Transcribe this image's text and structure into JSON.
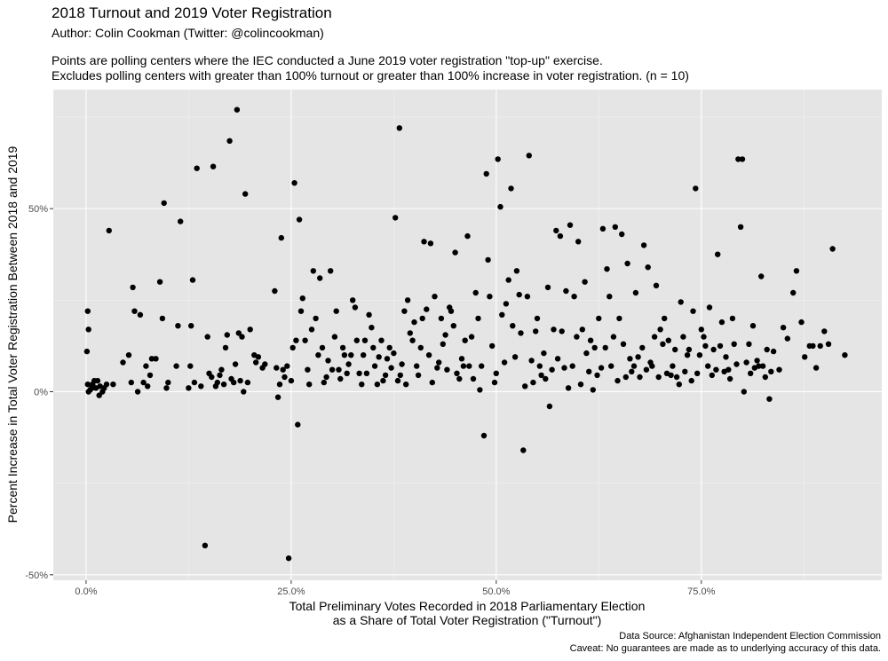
{
  "header": {
    "title": "2018 Turnout and 2019 Voter Registration",
    "subtitle": "Author: Colin Cookman (Twitter: @colincookman)",
    "description_line1": "Points are polling centers where the IEC conducted a June 2019 voter registration \"top-up\" exercise.",
    "description_line2": "Excludes polling centers with greater than 100% turnout or greater than 100% increase in voter registration. (n = 10)"
  },
  "caption": {
    "line1": "Data Source: Afghanistan Independent Election Commission",
    "line2": "Caveat: No guarantees are made as to underlying accuracy of this data."
  },
  "chart_data": {
    "type": "scatter",
    "title": "2018 Turnout and 2019 Voter Registration",
    "xlabel_line1": "Total Preliminary Votes Recorded in 2018 Parliamentary Election",
    "xlabel_line2": "as a Share of Total Voter Registration (\"Turnout\")",
    "ylabel": "Percent Increase in Total Voter Registration Between 2018 and 2019",
    "xlim": [
      -0.04,
      0.97
    ],
    "ylim": [
      -0.515,
      0.825
    ],
    "x_ticks": [
      0,
      0.25,
      0.5,
      0.75
    ],
    "x_tick_labels": [
      "0.0%",
      "25.0%",
      "50.0%",
      "75.0%"
    ],
    "y_ticks": [
      -0.5,
      0,
      0.5
    ],
    "y_tick_labels": [
      "-50%",
      "0%",
      "50%"
    ],
    "grid": true,
    "colors": {
      "panel": "#e5e5e5",
      "grid_major": "#ffffff",
      "grid_minor": "#f2f2f2",
      "point": "#000000"
    },
    "points": [
      [
        0.002,
        0.22
      ],
      [
        0.003,
        0.17
      ],
      [
        0.001,
        0.11
      ],
      [
        0.002,
        0.02
      ],
      [
        0.003,
        0.0
      ],
      [
        0.005,
        0.005
      ],
      [
        0.007,
        0.01
      ],
      [
        0.008,
        0.02
      ],
      [
        0.01,
        0.03
      ],
      [
        0.012,
        0.01
      ],
      [
        0.014,
        0.03
      ],
      [
        0.016,
        -0.01
      ],
      [
        0.017,
        0.015
      ],
      [
        0.02,
        0.0
      ],
      [
        0.022,
        0.01
      ],
      [
        0.025,
        0.02
      ],
      [
        0.028,
        0.44
      ],
      [
        0.033,
        0.02
      ],
      [
        0.045,
        0.08
      ],
      [
        0.052,
        0.1
      ],
      [
        0.055,
        0.025
      ],
      [
        0.057,
        0.285
      ],
      [
        0.059,
        0.22
      ],
      [
        0.063,
        0.0
      ],
      [
        0.066,
        0.21
      ],
      [
        0.07,
        0.025
      ],
      [
        0.073,
        0.07
      ],
      [
        0.075,
        0.015
      ],
      [
        0.078,
        0.045
      ],
      [
        0.08,
        0.09
      ],
      [
        0.085,
        0.09
      ],
      [
        0.09,
        0.3
      ],
      [
        0.093,
        0.2
      ],
      [
        0.095,
        0.515
      ],
      [
        0.098,
        0.01
      ],
      [
        0.1,
        0.025
      ],
      [
        0.11,
        0.07
      ],
      [
        0.112,
        0.18
      ],
      [
        0.115,
        0.465
      ],
      [
        0.125,
        0.01
      ],
      [
        0.127,
        0.07
      ],
      [
        0.128,
        0.18
      ],
      [
        0.13,
        0.305
      ],
      [
        0.132,
        0.025
      ],
      [
        0.135,
        0.61
      ],
      [
        0.14,
        0.015
      ],
      [
        0.145,
        -0.42
      ],
      [
        0.148,
        0.15
      ],
      [
        0.15,
        0.05
      ],
      [
        0.153,
        0.04
      ],
      [
        0.155,
        0.615
      ],
      [
        0.158,
        0.015
      ],
      [
        0.16,
        0.025
      ],
      [
        0.163,
        0.045
      ],
      [
        0.165,
        0.06
      ],
      [
        0.168,
        0.02
      ],
      [
        0.17,
        0.12
      ],
      [
        0.172,
        0.155
      ],
      [
        0.175,
        0.685
      ],
      [
        0.177,
        0.035
      ],
      [
        0.18,
        0.025
      ],
      [
        0.182,
        0.075
      ],
      [
        0.184,
        0.77
      ],
      [
        0.186,
        0.16
      ],
      [
        0.188,
        0.03
      ],
      [
        0.19,
        0.15
      ],
      [
        0.192,
        0.0
      ],
      [
        0.194,
        0.54
      ],
      [
        0.197,
        0.025
      ],
      [
        0.2,
        0.17
      ],
      [
        0.205,
        0.1
      ],
      [
        0.207,
        0.08
      ],
      [
        0.21,
        0.095
      ],
      [
        0.215,
        0.065
      ],
      [
        0.218,
        0.075
      ],
      [
        0.23,
        0.275
      ],
      [
        0.232,
        0.065
      ],
      [
        0.234,
        -0.015
      ],
      [
        0.236,
        0.02
      ],
      [
        0.238,
        0.42
      ],
      [
        0.24,
        0.06
      ],
      [
        0.242,
        0.04
      ],
      [
        0.245,
        0.07
      ],
      [
        0.247,
        -0.455
      ],
      [
        0.25,
        0.03
      ],
      [
        0.252,
        0.12
      ],
      [
        0.254,
        0.57
      ],
      [
        0.256,
        0.14
      ],
      [
        0.258,
        -0.09
      ],
      [
        0.26,
        0.47
      ],
      [
        0.262,
        0.22
      ],
      [
        0.264,
        0.255
      ],
      [
        0.267,
        0.14
      ],
      [
        0.27,
        0.06
      ],
      [
        0.272,
        0.02
      ],
      [
        0.275,
        0.17
      ],
      [
        0.277,
        0.33
      ],
      [
        0.28,
        0.2
      ],
      [
        0.283,
        0.1
      ],
      [
        0.285,
        0.31
      ],
      [
        0.288,
        0.12
      ],
      [
        0.29,
        0.025
      ],
      [
        0.293,
        0.04
      ],
      [
        0.295,
        0.085
      ],
      [
        0.298,
        0.33
      ],
      [
        0.3,
        0.06
      ],
      [
        0.303,
        0.15
      ],
      [
        0.305,
        0.22
      ],
      [
        0.308,
        0.06
      ],
      [
        0.31,
        0.035
      ],
      [
        0.313,
        0.12
      ],
      [
        0.315,
        0.1
      ],
      [
        0.318,
        0.05
      ],
      [
        0.32,
        0.075
      ],
      [
        0.323,
        0.1
      ],
      [
        0.325,
        0.25
      ],
      [
        0.328,
        0.23
      ],
      [
        0.33,
        0.14
      ],
      [
        0.333,
        0.05
      ],
      [
        0.336,
        0.02
      ],
      [
        0.338,
        0.1
      ],
      [
        0.34,
        0.14
      ],
      [
        0.342,
        0.05
      ],
      [
        0.345,
        0.21
      ],
      [
        0.348,
        0.175
      ],
      [
        0.35,
        0.12
      ],
      [
        0.352,
        0.07
      ],
      [
        0.355,
        0.02
      ],
      [
        0.357,
        0.095
      ],
      [
        0.36,
        0.14
      ],
      [
        0.362,
        0.03
      ],
      [
        0.365,
        0.045
      ],
      [
        0.367,
        0.09
      ],
      [
        0.37,
        0.12
      ],
      [
        0.372,
        0.065
      ],
      [
        0.375,
        0.105
      ],
      [
        0.377,
        0.475
      ],
      [
        0.38,
        0.03
      ],
      [
        0.382,
        0.72
      ],
      [
        0.383,
        0.045
      ],
      [
        0.385,
        0.075
      ],
      [
        0.388,
        0.22
      ],
      [
        0.39,
        0.02
      ],
      [
        0.392,
        0.25
      ],
      [
        0.395,
        0.16
      ],
      [
        0.398,
        0.14
      ],
      [
        0.4,
        0.19
      ],
      [
        0.403,
        0.07
      ],
      [
        0.405,
        0.045
      ],
      [
        0.408,
        0.12
      ],
      [
        0.41,
        0.2
      ],
      [
        0.412,
        0.41
      ],
      [
        0.415,
        0.225
      ],
      [
        0.418,
        0.1
      ],
      [
        0.42,
        0.405
      ],
      [
        0.422,
        0.025
      ],
      [
        0.425,
        0.26
      ],
      [
        0.428,
        0.065
      ],
      [
        0.43,
        0.08
      ],
      [
        0.433,
        0.2
      ],
      [
        0.435,
        0.13
      ],
      [
        0.438,
        0.155
      ],
      [
        0.44,
        0.06
      ],
      [
        0.443,
        0.23
      ],
      [
        0.445,
        0.22
      ],
      [
        0.448,
        0.18
      ],
      [
        0.45,
        0.38
      ],
      [
        0.452,
        0.05
      ],
      [
        0.455,
        0.035
      ],
      [
        0.458,
        0.09
      ],
      [
        0.46,
        0.07
      ],
      [
        0.462,
        0.14
      ],
      [
        0.465,
        0.425
      ],
      [
        0.467,
        0.07
      ],
      [
        0.47,
        0.15
      ],
      [
        0.472,
        0.035
      ],
      [
        0.475,
        0.27
      ],
      [
        0.478,
        0.2
      ],
      [
        0.48,
        0.005
      ],
      [
        0.482,
        0.07
      ],
      [
        0.485,
        -0.12
      ],
      [
        0.488,
        0.595
      ],
      [
        0.49,
        0.36
      ],
      [
        0.492,
        0.26
      ],
      [
        0.495,
        0.125
      ],
      [
        0.498,
        0.025
      ],
      [
        0.5,
        0.05
      ],
      [
        0.502,
        0.635
      ],
      [
        0.505,
        0.505
      ],
      [
        0.507,
        0.21
      ],
      [
        0.51,
        0.08
      ],
      [
        0.512,
        0.24
      ],
      [
        0.515,
        0.305
      ],
      [
        0.518,
        0.555
      ],
      [
        0.52,
        0.18
      ],
      [
        0.523,
        0.095
      ],
      [
        0.525,
        0.33
      ],
      [
        0.528,
        0.265
      ],
      [
        0.53,
        0.16
      ],
      [
        0.533,
        -0.16
      ],
      [
        0.535,
        0.015
      ],
      [
        0.538,
        0.26
      ],
      [
        0.54,
        0.645
      ],
      [
        0.543,
        0.085
      ],
      [
        0.545,
        0.025
      ],
      [
        0.548,
        0.165
      ],
      [
        0.55,
        0.2
      ],
      [
        0.553,
        0.07
      ],
      [
        0.555,
        0.045
      ],
      [
        0.558,
        0.105
      ],
      [
        0.56,
        0.035
      ],
      [
        0.563,
        0.285
      ],
      [
        0.565,
        -0.04
      ],
      [
        0.568,
        0.06
      ],
      [
        0.57,
        0.17
      ],
      [
        0.573,
        0.44
      ],
      [
        0.575,
        0.09
      ],
      [
        0.578,
        0.425
      ],
      [
        0.58,
        0.165
      ],
      [
        0.583,
        0.065
      ],
      [
        0.585,
        0.275
      ],
      [
        0.588,
        0.01
      ],
      [
        0.59,
        0.455
      ],
      [
        0.593,
        0.07
      ],
      [
        0.595,
        0.26
      ],
      [
        0.598,
        0.15
      ],
      [
        0.6,
        0.41
      ],
      [
        0.603,
        0.02
      ],
      [
        0.605,
        0.17
      ],
      [
        0.608,
        0.3
      ],
      [
        0.61,
        0.105
      ],
      [
        0.613,
        0.055
      ],
      [
        0.615,
        0.14
      ],
      [
        0.618,
        0.005
      ],
      [
        0.62,
        0.12
      ],
      [
        0.623,
        0.045
      ],
      [
        0.625,
        0.2
      ],
      [
        0.628,
        0.065
      ],
      [
        0.63,
        0.445
      ],
      [
        0.633,
        0.12
      ],
      [
        0.635,
        0.335
      ],
      [
        0.638,
        0.26
      ],
      [
        0.64,
        0.07
      ],
      [
        0.643,
        0.15
      ],
      [
        0.645,
        0.45
      ],
      [
        0.648,
        0.03
      ],
      [
        0.65,
        0.2
      ],
      [
        0.653,
        0.43
      ],
      [
        0.655,
        0.13
      ],
      [
        0.658,
        0.04
      ],
      [
        0.66,
        0.35
      ],
      [
        0.663,
        0.09
      ],
      [
        0.665,
        0.055
      ],
      [
        0.668,
        0.07
      ],
      [
        0.67,
        0.27
      ],
      [
        0.673,
        0.095
      ],
      [
        0.675,
        0.04
      ],
      [
        0.678,
        0.12
      ],
      [
        0.68,
        0.4
      ],
      [
        0.683,
        0.06
      ],
      [
        0.685,
        0.34
      ],
      [
        0.688,
        0.08
      ],
      [
        0.69,
        0.07
      ],
      [
        0.693,
        0.15
      ],
      [
        0.695,
        0.29
      ],
      [
        0.698,
        0.04
      ],
      [
        0.7,
        0.17
      ],
      [
        0.703,
        0.13
      ],
      [
        0.705,
        0.2
      ],
      [
        0.708,
        0.05
      ],
      [
        0.71,
        0.14
      ],
      [
        0.713,
        0.045
      ],
      [
        0.715,
        0.07
      ],
      [
        0.718,
        0.115
      ],
      [
        0.72,
        0.04
      ],
      [
        0.723,
        0.02
      ],
      [
        0.725,
        0.245
      ],
      [
        0.728,
        0.15
      ],
      [
        0.73,
        0.055
      ],
      [
        0.733,
        0.1
      ],
      [
        0.735,
        0.115
      ],
      [
        0.738,
        0.03
      ],
      [
        0.74,
        0.22
      ],
      [
        0.743,
        0.555
      ],
      [
        0.745,
        0.05
      ],
      [
        0.748,
        0.1
      ],
      [
        0.75,
        0.17
      ],
      [
        0.753,
        0.15
      ],
      [
        0.755,
        0.125
      ],
      [
        0.758,
        0.07
      ],
      [
        0.76,
        0.23
      ],
      [
        0.763,
        0.045
      ],
      [
        0.765,
        0.115
      ],
      [
        0.768,
        0.06
      ],
      [
        0.77,
        0.375
      ],
      [
        0.773,
        0.125
      ],
      [
        0.775,
        0.19
      ],
      [
        0.778,
        0.055
      ],
      [
        0.78,
        0.095
      ],
      [
        0.783,
        0.06
      ],
      [
        0.785,
        0.035
      ],
      [
        0.788,
        0.2
      ],
      [
        0.79,
        0.13
      ],
      [
        0.793,
        0.075
      ],
      [
        0.795,
        0.635
      ],
      [
        0.798,
        0.45
      ],
      [
        0.8,
        0.635
      ],
      [
        0.802,
        0.0
      ],
      [
        0.805,
        0.08
      ],
      [
        0.808,
        0.13
      ],
      [
        0.81,
        0.05
      ],
      [
        0.813,
        0.18
      ],
      [
        0.815,
        0.065
      ],
      [
        0.818,
        0.085
      ],
      [
        0.82,
        0.07
      ],
      [
        0.823,
        0.315
      ],
      [
        0.825,
        0.07
      ],
      [
        0.828,
        0.04
      ],
      [
        0.83,
        0.115
      ],
      [
        0.833,
        -0.02
      ],
      [
        0.835,
        0.055
      ],
      [
        0.838,
        0.11
      ],
      [
        0.845,
        0.06
      ],
      [
        0.85,
        0.175
      ],
      [
        0.855,
        0.145
      ],
      [
        0.862,
        0.27
      ],
      [
        0.866,
        0.33
      ],
      [
        0.872,
        0.19
      ],
      [
        0.876,
        0.095
      ],
      [
        0.882,
        0.125
      ],
      [
        0.886,
        0.125
      ],
      [
        0.89,
        0.065
      ],
      [
        0.895,
        0.125
      ],
      [
        0.9,
        0.165
      ],
      [
        0.905,
        0.13
      ],
      [
        0.91,
        0.39
      ],
      [
        0.925,
        0.1
      ]
    ]
  }
}
